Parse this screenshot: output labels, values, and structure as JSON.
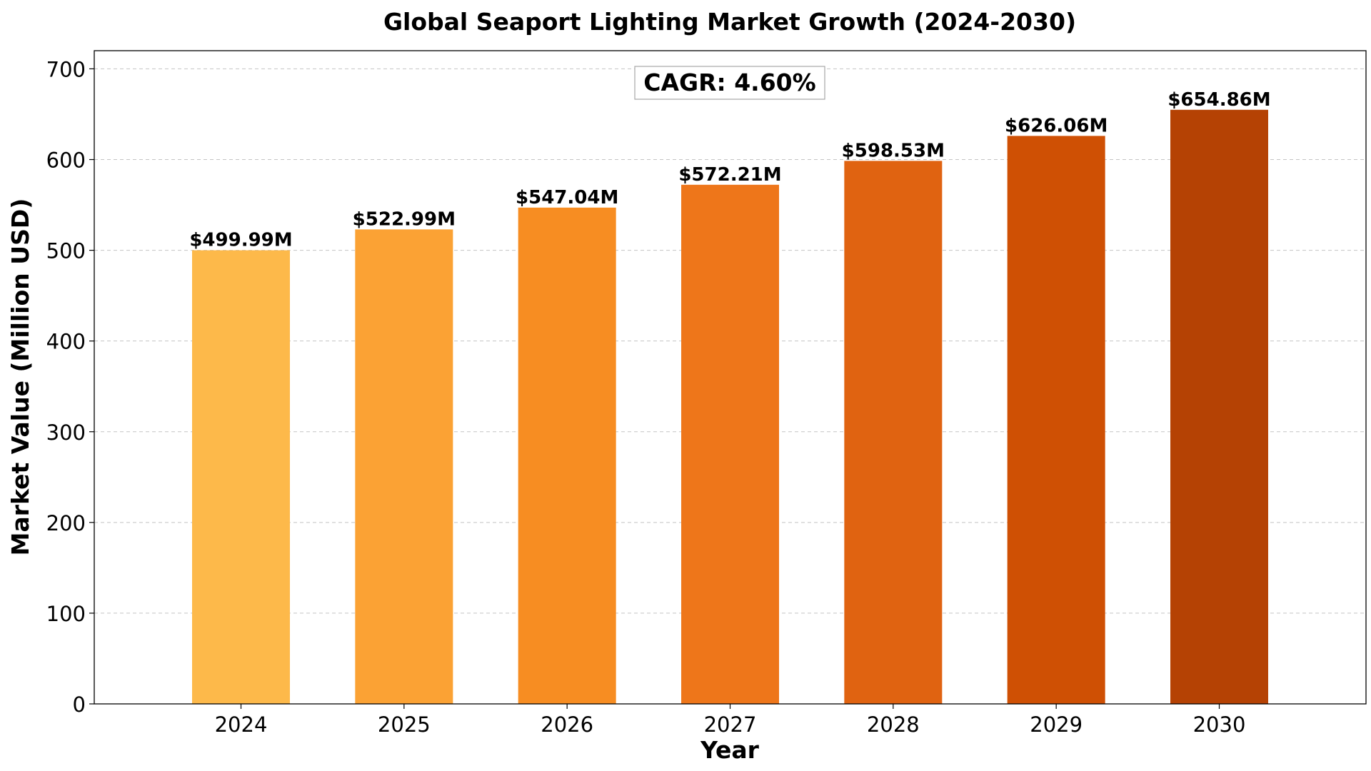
{
  "chart_data": {
    "type": "bar",
    "title": "Global Seaport Lighting Market Growth (2024-2030)",
    "xlabel": "Year",
    "ylabel": "Market Value (Million USD)",
    "categories": [
      "2024",
      "2025",
      "2026",
      "2027",
      "2028",
      "2029",
      "2030"
    ],
    "values": [
      499.99,
      522.99,
      547.04,
      572.21,
      598.53,
      626.06,
      654.86
    ],
    "data_labels": [
      "$499.99M",
      "$522.99M",
      "$547.04M",
      "$572.21M",
      "$598.53M",
      "$626.06M",
      "$654.86M"
    ],
    "colors": [
      "#FDB94A",
      "#FBA234",
      "#F78D22",
      "#EE761A",
      "#E06311",
      "#CF5004",
      "#B54204"
    ],
    "ylim": [
      0,
      720
    ],
    "yticks": [
      0,
      100,
      200,
      300,
      400,
      500,
      600,
      700
    ],
    "grid": "y-dashed",
    "annotation": "CAGR: 4.60%"
  }
}
